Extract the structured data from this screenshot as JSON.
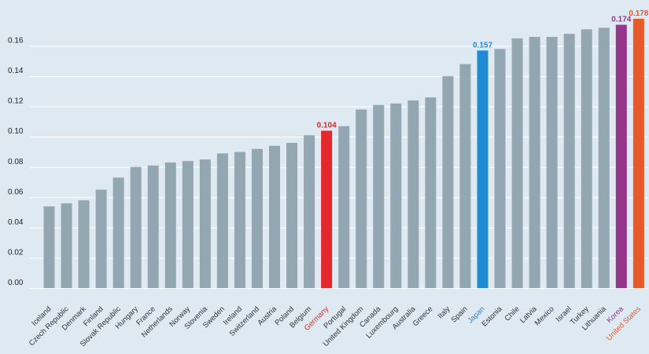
{
  "chart_data": {
    "type": "bar",
    "title": "",
    "xlabel": "",
    "ylabel": "",
    "ylim": [
      0,
      0.18
    ],
    "yticks": [
      0.0,
      0.02,
      0.04,
      0.06,
      0.08,
      0.1,
      0.12,
      0.14,
      0.16
    ],
    "ytick_labels": [
      "0.00",
      "0.02",
      "0.04",
      "0.06",
      "0.08",
      "0.10",
      "0.12",
      "0.14",
      "0.16"
    ],
    "grid": true,
    "categories": [
      "Iceland",
      "Czech Republic",
      "Denmark",
      "Finland",
      "Slovak Republic",
      "Hungary",
      "France",
      "Netherlands",
      "Norway",
      "Slovenia",
      "Sweden",
      "Ireland",
      "Switzerland",
      "Austria",
      "Poland",
      "Belgium",
      "Germany",
      "Portugal",
      "United Kingdom",
      "Canada",
      "Luxembourg",
      "Australia",
      "Greece",
      "Italy",
      "Spain",
      "Japan",
      "Estonia",
      "Chile",
      "Latvia",
      "Mexico",
      "Israel",
      "Turkey",
      "Lithuania",
      "Korea",
      "United States"
    ],
    "values": [
      0.054,
      0.056,
      0.058,
      0.065,
      0.073,
      0.08,
      0.081,
      0.083,
      0.084,
      0.085,
      0.089,
      0.09,
      0.092,
      0.094,
      0.096,
      0.101,
      0.104,
      0.107,
      0.118,
      0.121,
      0.122,
      0.124,
      0.126,
      0.14,
      0.148,
      0.157,
      0.158,
      0.165,
      0.166,
      0.166,
      0.168,
      0.171,
      0.172,
      0.174,
      0.178
    ],
    "default_color": "#93a7b2",
    "highlights": [
      {
        "category": "Germany",
        "color": "#e3282d",
        "label": "0.104"
      },
      {
        "category": "Japan",
        "color": "#1f8bd4",
        "label": "0.157"
      },
      {
        "category": "Korea",
        "color": "#96358c",
        "label": "0.174"
      },
      {
        "category": "United States",
        "color": "#e8592a",
        "label": "0.178"
      }
    ],
    "colors": {
      "background": "#dfe9f1",
      "gridline": "#ffffff",
      "tick_text": "#222222",
      "category_text": "#333333"
    }
  }
}
